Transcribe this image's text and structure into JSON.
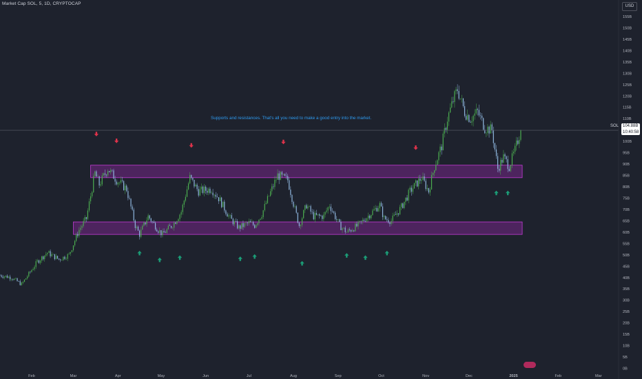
{
  "header": {
    "title": "Market Cap SOL, 5, 1D, CRYPTOCAP",
    "currency": "USD"
  },
  "price_tag": {
    "symbol": "SOL",
    "value": "104.88B",
    "countdown": "10:40:58"
  },
  "annotation": "Supports and resistances. That's all you need to make a good entry into the market.",
  "colors": {
    "background": "#1e222d",
    "bull_candle": "#4caf50",
    "bear_candle": "#90b8e0",
    "zone_fill": "#9c27b0",
    "zone_border": "#c23bd4",
    "arrow_down": "#e0334b",
    "arrow_up": "#1b9d77",
    "annotation_text": "#2f9bf0"
  },
  "chart_data": {
    "type": "candlestick",
    "y_unit": "B",
    "y_range": [
      0,
      160
    ],
    "y_ticks": [
      "160B",
      "155B",
      "150B",
      "145B",
      "140B",
      "135B",
      "130B",
      "125B",
      "120B",
      "115B",
      "110B",
      "105B",
      "100B",
      "95B",
      "90B",
      "85B",
      "80B",
      "75B",
      "70B",
      "65B",
      "60B",
      "55B",
      "50B",
      "45B",
      "40B",
      "35B",
      "30B",
      "25B",
      "20B",
      "15B",
      "10B",
      "5B",
      "0B"
    ],
    "x_ticks": [
      "Feb",
      "Mar",
      "Apr",
      "May",
      "Jun",
      "Jul",
      "Aug",
      "Sep",
      "Oct",
      "Nov",
      "Dec",
      "2025",
      "Feb",
      "Mar"
    ],
    "x_range": [
      "2024-01-10",
      "2025-03-15"
    ],
    "close_path": [
      {
        "date": "2024-01-10",
        "value": 41
      },
      {
        "date": "2024-01-18",
        "value": 40
      },
      {
        "date": "2024-01-25",
        "value": 37
      },
      {
        "date": "2024-02-05",
        "value": 47
      },
      {
        "date": "2024-02-12",
        "value": 51
      },
      {
        "date": "2024-02-20",
        "value": 48
      },
      {
        "date": "2024-02-27",
        "value": 50
      },
      {
        "date": "2024-03-05",
        "value": 61
      },
      {
        "date": "2024-03-10",
        "value": 66
      },
      {
        "date": "2024-03-16",
        "value": 86
      },
      {
        "date": "2024-03-19",
        "value": 81
      },
      {
        "date": "2024-03-25",
        "value": 88
      },
      {
        "date": "2024-03-31",
        "value": 83
      },
      {
        "date": "2024-04-07",
        "value": 79
      },
      {
        "date": "2024-04-13",
        "value": 63
      },
      {
        "date": "2024-04-16",
        "value": 59
      },
      {
        "date": "2024-04-22",
        "value": 67
      },
      {
        "date": "2024-04-29",
        "value": 61
      },
      {
        "date": "2024-05-02",
        "value": 59
      },
      {
        "date": "2024-05-10",
        "value": 64
      },
      {
        "date": "2024-05-15",
        "value": 69
      },
      {
        "date": "2024-05-21",
        "value": 84
      },
      {
        "date": "2024-05-27",
        "value": 78
      },
      {
        "date": "2024-06-05",
        "value": 79
      },
      {
        "date": "2024-06-10",
        "value": 75
      },
      {
        "date": "2024-06-18",
        "value": 66
      },
      {
        "date": "2024-06-24",
        "value": 62
      },
      {
        "date": "2024-07-01",
        "value": 64
      },
      {
        "date": "2024-07-05",
        "value": 63
      },
      {
        "date": "2024-07-10",
        "value": 68
      },
      {
        "date": "2024-07-15",
        "value": 76
      },
      {
        "date": "2024-07-21",
        "value": 85
      },
      {
        "date": "2024-07-28",
        "value": 83
      },
      {
        "date": "2024-08-02",
        "value": 70
      },
      {
        "date": "2024-08-05",
        "value": 63
      },
      {
        "date": "2024-08-10",
        "value": 72
      },
      {
        "date": "2024-08-15",
        "value": 67
      },
      {
        "date": "2024-08-22",
        "value": 67
      },
      {
        "date": "2024-08-26",
        "value": 72
      },
      {
        "date": "2024-09-02",
        "value": 63
      },
      {
        "date": "2024-09-07",
        "value": 60
      },
      {
        "date": "2024-09-15",
        "value": 63
      },
      {
        "date": "2024-09-25",
        "value": 69
      },
      {
        "date": "2024-09-30",
        "value": 72
      },
      {
        "date": "2024-10-03",
        "value": 66
      },
      {
        "date": "2024-10-08",
        "value": 65
      },
      {
        "date": "2024-10-15",
        "value": 71
      },
      {
        "date": "2024-10-21",
        "value": 78
      },
      {
        "date": "2024-10-29",
        "value": 84
      },
      {
        "date": "2024-11-03",
        "value": 78
      },
      {
        "date": "2024-11-07",
        "value": 89
      },
      {
        "date": "2024-11-12",
        "value": 98
      },
      {
        "date": "2024-11-16",
        "value": 110
      },
      {
        "date": "2024-11-20",
        "value": 118
      },
      {
        "date": "2024-11-23",
        "value": 123
      },
      {
        "date": "2024-11-28",
        "value": 113
      },
      {
        "date": "2024-12-02",
        "value": 110
      },
      {
        "date": "2024-12-07",
        "value": 113
      },
      {
        "date": "2024-12-12",
        "value": 106
      },
      {
        "date": "2024-12-17",
        "value": 105
      },
      {
        "date": "2024-12-21",
        "value": 88
      },
      {
        "date": "2024-12-25",
        "value": 93
      },
      {
        "date": "2024-12-29",
        "value": 89
      },
      {
        "date": "2025-01-02",
        "value": 96
      },
      {
        "date": "2025-01-06",
        "value": 104.88
      }
    ],
    "zones": [
      {
        "from": "2024-03-13",
        "to": "2025-01-07",
        "low": 84,
        "high": 89.5
      },
      {
        "from": "2024-03-01",
        "to": "2025-01-07",
        "low": 59,
        "high": 64.5
      }
    ],
    "current_price": {
      "date": "2025-01-06",
      "value": 104.88
    },
    "markers_down": [
      {
        "date": "2024-03-17",
        "value": 103
      },
      {
        "date": "2024-03-31",
        "value": 100
      },
      {
        "date": "2024-05-22",
        "value": 98
      },
      {
        "date": "2024-07-25",
        "value": 99.5
      },
      {
        "date": "2024-10-25",
        "value": 97
      }
    ],
    "markers_up": [
      {
        "date": "2024-04-16",
        "value": 51
      },
      {
        "date": "2024-04-30",
        "value": 48
      },
      {
        "date": "2024-05-14",
        "value": 49
      },
      {
        "date": "2024-06-25",
        "value": 48.5
      },
      {
        "date": "2024-07-05",
        "value": 49.5
      },
      {
        "date": "2024-08-07",
        "value": 46.5
      },
      {
        "date": "2024-09-07",
        "value": 50
      },
      {
        "date": "2024-09-20",
        "value": 49
      },
      {
        "date": "2024-10-05",
        "value": 51
      },
      {
        "date": "2024-12-20",
        "value": 77.5
      },
      {
        "date": "2024-12-28",
        "value": 77.5
      }
    ]
  }
}
